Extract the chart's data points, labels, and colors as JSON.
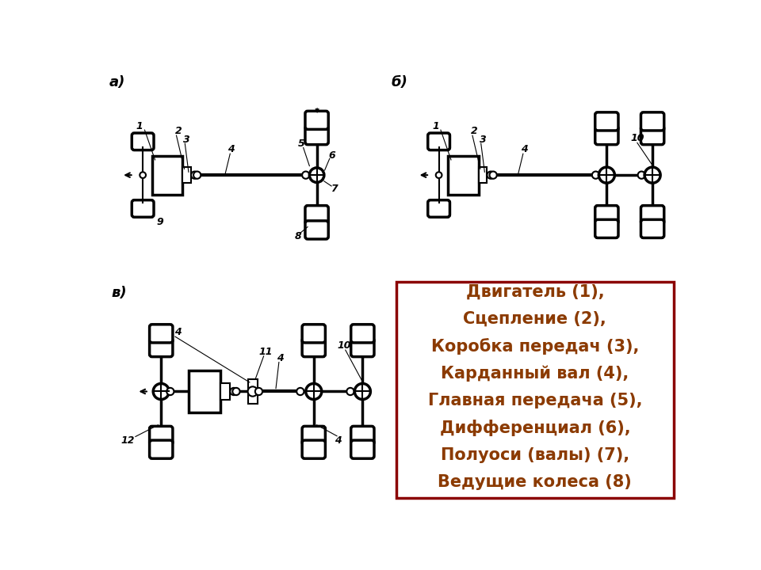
{
  "bg_color": "#ffffff",
  "line_color": "#000000",
  "legend_text_color": "#8B3A00",
  "legend_border_color": "#8B0000",
  "legend_lines": [
    "Двигатель (1),",
    "Сцепление (2),",
    "Коробка передач (3),",
    "Карданный вал (4),",
    "Главная передача (5),",
    "Дифференциал (6),",
    "Полуоси (валы) (7),",
    "Ведущие колеса (8)"
  ],
  "label_a": "а)",
  "label_b": "б)",
  "label_v": "в)"
}
